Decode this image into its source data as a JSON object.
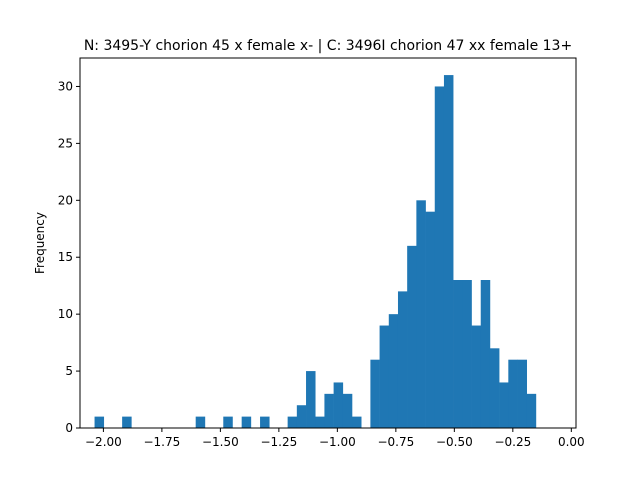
{
  "chart_data": {
    "type": "bar",
    "title": "N: 3495-Y chorion 45 x female x- | C: 3496I chorion 47 xx female 13+",
    "xlabel": "",
    "ylabel": "Frequency",
    "xlim": [
      -2.1,
      0.02
    ],
    "ylim": [
      0,
      32.5
    ],
    "x_ticks": [
      -2.0,
      -1.75,
      -1.5,
      -1.25,
      -1.0,
      -0.75,
      -0.5,
      -0.25,
      0.0
    ],
    "x_tick_labels": [
      "−2.00",
      "−1.75",
      "−1.50",
      "−1.25",
      "−1.00",
      "−0.75",
      "−0.50",
      "−0.25",
      "0.00"
    ],
    "y_ticks": [
      0,
      5,
      10,
      15,
      20,
      25,
      30
    ],
    "y_tick_labels": [
      "0",
      "5",
      "10",
      "15",
      "20",
      "25",
      "30"
    ],
    "grid": false,
    "bar_color": "#1f77b4",
    "bin_start": -2.0378,
    "bin_width": 0.0393,
    "values": [
      1,
      0,
      0,
      1,
      0,
      0,
      0,
      0,
      0,
      0,
      0,
      1,
      0,
      0,
      1,
      0,
      1,
      0,
      1,
      0,
      0,
      1,
      2,
      5,
      1,
      3,
      4,
      3,
      1,
      0,
      6,
      9,
      10,
      12,
      16,
      20,
      19,
      30,
      31,
      13,
      13,
      9,
      13,
      7,
      4,
      6,
      6,
      3
    ]
  }
}
